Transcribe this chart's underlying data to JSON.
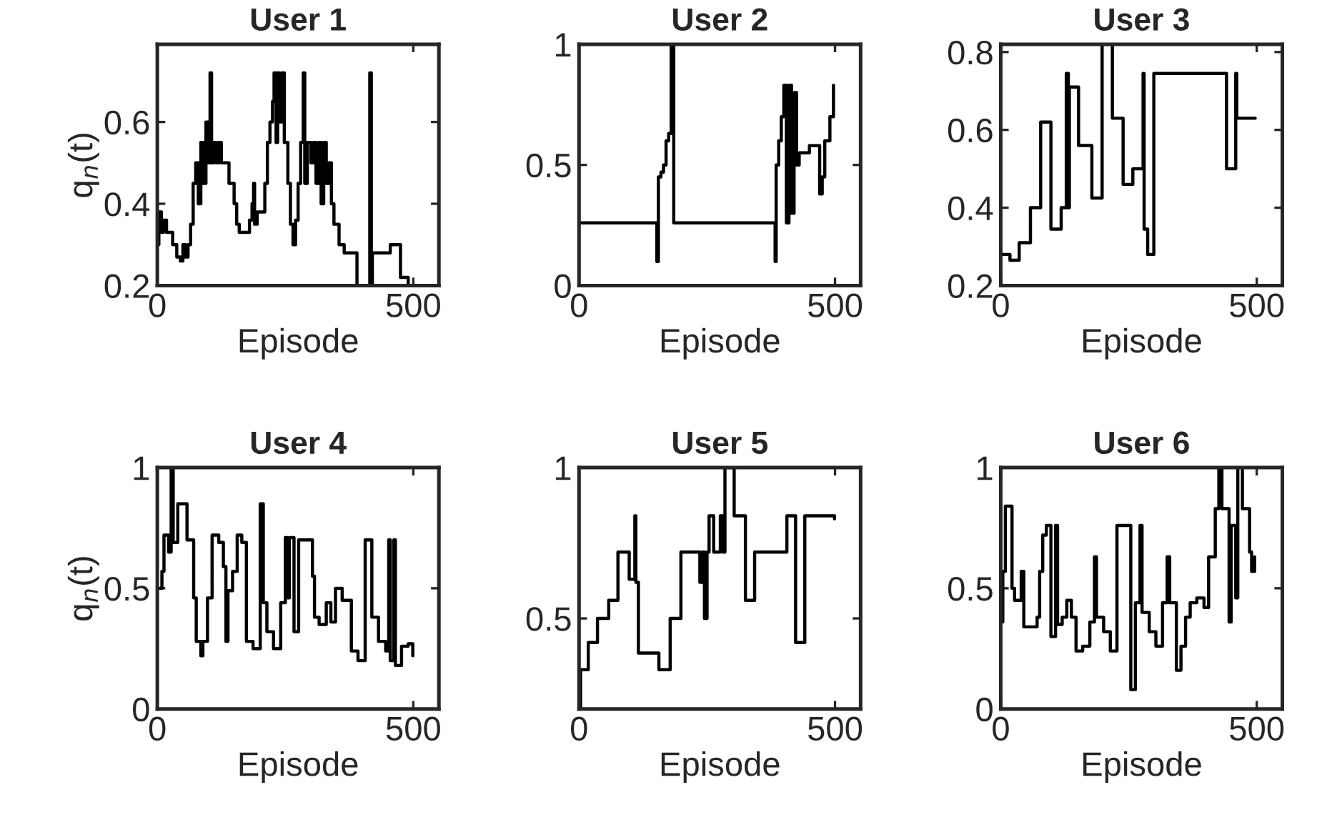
{
  "chart_data": [
    {
      "type": "step",
      "title": "User 1",
      "xlabel": "Episode",
      "ylabel": "q$_{n}$(t)",
      "xlim": [
        0,
        550
      ],
      "xticks": [
        0,
        500
      ],
      "ylim": [
        0.2,
        0.79
      ],
      "yticks": [
        0.2,
        0.4,
        0.6
      ],
      "series": [
        {
          "color": "#000000",
          "x": [
            0,
            3,
            8,
            12,
            18,
            25,
            30,
            38,
            45,
            50,
            55,
            60,
            65,
            70,
            75,
            80,
            85,
            90,
            95,
            100,
            103,
            106,
            110,
            115,
            120,
            125,
            135,
            140,
            150,
            155,
            160,
            175,
            180,
            185,
            188,
            190,
            195,
            205,
            210,
            215,
            220,
            225,
            228,
            232,
            235,
            238,
            243,
            248,
            255,
            260,
            265,
            270,
            275,
            280,
            285,
            288,
            293,
            300,
            305,
            310,
            315,
            320,
            325,
            330,
            335,
            340,
            345,
            355,
            365,
            380,
            390,
            410,
            415,
            418,
            420,
            450,
            455,
            470,
            475,
            490
          ],
          "values": [
            0.3,
            0.38,
            0.33,
            0.36,
            0.33,
            0.33,
            0.3,
            0.27,
            0.26,
            0.3,
            0.27,
            0.3,
            0.35,
            0.45,
            0.5,
            0.4,
            0.55,
            0.45,
            0.6,
            0.5,
            0.72,
            0.5,
            0.55,
            0.5,
            0.55,
            0.5,
            0.5,
            0.45,
            0.4,
            0.35,
            0.33,
            0.33,
            0.36,
            0.4,
            0.45,
            0.35,
            0.38,
            0.38,
            0.45,
            0.55,
            0.6,
            0.65,
            0.72,
            0.55,
            0.72,
            0.6,
            0.72,
            0.55,
            0.45,
            0.35,
            0.3,
            0.36,
            0.45,
            0.55,
            0.72,
            0.45,
            0.55,
            0.5,
            0.55,
            0.45,
            0.55,
            0.4,
            0.55,
            0.45,
            0.5,
            0.4,
            0.35,
            0.3,
            0.28,
            0.28,
            0.2,
            0.2,
            0.72,
            0.2,
            0.28,
            0.28,
            0.3,
            0.3,
            0.22,
            0.2
          ]
        }
      ]
    },
    {
      "type": "step",
      "title": "User 2",
      "xlabel": "Episode",
      "xlim": [
        0,
        550
      ],
      "xticks": [
        0,
        500
      ],
      "ylim": [
        0,
        1
      ],
      "yticks": [
        0,
        0.5,
        1
      ],
      "series": [
        {
          "color": "#000000",
          "x": [
            0,
            150,
            152,
            155,
            160,
            165,
            170,
            175,
            180,
            185,
            380,
            383,
            385,
            390,
            395,
            400,
            405,
            410,
            415,
            420,
            425,
            430,
            440,
            450,
            460,
            470,
            475,
            480,
            490,
            497
          ],
          "values": [
            0.26,
            0.26,
            0.1,
            0.45,
            0.47,
            0.5,
            0.6,
            0.63,
            1.0,
            0.26,
            0.26,
            0.1,
            0.5,
            0.6,
            0.7,
            0.83,
            0.26,
            0.83,
            0.3,
            0.8,
            0.5,
            0.55,
            0.55,
            0.58,
            0.58,
            0.38,
            0.45,
            0.6,
            0.7,
            0.83
          ]
        }
      ]
    },
    {
      "type": "step",
      "title": "User 3",
      "xlabel": "Episode",
      "xlim": [
        0,
        550
      ],
      "xticks": [
        0,
        500
      ],
      "ylim": [
        0.2,
        0.82
      ],
      "yticks": [
        0.2,
        0.4,
        0.6,
        0.8
      ],
      "series": [
        {
          "color": "#000000",
          "x": [
            0,
            18,
            36,
            58,
            78,
            98,
            118,
            128,
            132,
            134,
            152,
            178,
            198,
            218,
            239,
            258,
            278,
            280,
            287,
            299,
            441,
            459,
            461,
            497
          ],
          "values": [
            0.28,
            0.265,
            0.31,
            0.4,
            0.62,
            0.345,
            0.4,
            0.745,
            0.4,
            0.71,
            0.56,
            0.425,
            0.82,
            0.63,
            0.46,
            0.5,
            0.745,
            0.345,
            0.28,
            0.745,
            0.5,
            0.745,
            0.63,
            0.63
          ]
        }
      ]
    },
    {
      "type": "step",
      "title": "User 4",
      "xlabel": "Episode",
      "ylabel": "q$_{n}$(t)",
      "xlim": [
        0,
        550
      ],
      "xticks": [
        0,
        500
      ],
      "ylim": [
        0,
        1
      ],
      "yticks": [
        0,
        0.5,
        1
      ],
      "series": [
        {
          "color": "#000000",
          "x": [
            0,
            9,
            13,
            22,
            27,
            31,
            40,
            58,
            71,
            76,
            85,
            89,
            98,
            107,
            120,
            129,
            134,
            138,
            147,
            156,
            165,
            174,
            187,
            201,
            207,
            214,
            227,
            241,
            250,
            254,
            258,
            267,
            276,
            290,
            303,
            307,
            316,
            330,
            339,
            348,
            361,
            379,
            392,
            406,
            419,
            432,
            446,
            452,
            455,
            462,
            465,
            477,
            490,
            499
          ],
          "values": [
            0.5,
            0.57,
            0.72,
            0.65,
            1.0,
            0.69,
            0.85,
            0.7,
            0.46,
            0.28,
            0.22,
            0.28,
            0.46,
            0.72,
            0.69,
            0.59,
            0.28,
            0.49,
            0.57,
            0.72,
            0.69,
            0.28,
            0.25,
            0.85,
            0.44,
            0.32,
            0.25,
            0.44,
            0.71,
            0.46,
            0.71,
            0.32,
            0.7,
            0.7,
            0.55,
            0.38,
            0.35,
            0.44,
            0.36,
            0.5,
            0.45,
            0.24,
            0.2,
            0.7,
            0.38,
            0.28,
            0.24,
            0.7,
            0.2,
            0.7,
            0.18,
            0.26,
            0.27,
            0.22
          ]
        }
      ]
    },
    {
      "type": "step",
      "title": "User 5",
      "xlabel": "Episode",
      "xlim": [
        0,
        550
      ],
      "xticks": [
        0,
        500
      ],
      "ylim": [
        0.2,
        1
      ],
      "yticks": [
        0.5,
        1
      ],
      "series": [
        {
          "color": "#000000",
          "x": [
            0,
            3,
            18,
            36,
            58,
            76,
            98,
            109,
            111,
            116,
            156,
            178,
            199,
            236,
            241,
            245,
            250,
            254,
            263,
            276,
            281,
            285,
            303,
            325,
            343,
            406,
            423,
            441,
            499
          ],
          "values": [
            0.2,
            0.33,
            0.42,
            0.5,
            0.56,
            0.72,
            0.63,
            0.84,
            0.62,
            0.385,
            0.33,
            0.5,
            0.72,
            0.62,
            0.72,
            0.5,
            0.72,
            0.84,
            0.72,
            0.84,
            0.72,
            1.0,
            0.84,
            0.56,
            0.72,
            0.84,
            0.42,
            0.84,
            0.83
          ]
        }
      ]
    },
    {
      "type": "step",
      "title": "User 6",
      "xlabel": "Episode",
      "xlim": [
        0,
        550
      ],
      "xticks": [
        0,
        500
      ],
      "ylim": [
        0,
        1
      ],
      "yticks": [
        0,
        0.5,
        1
      ],
      "series": [
        {
          "color": "#000000",
          "x": [
            0,
            4,
            9,
            22,
            27,
            40,
            45,
            71,
            76,
            82,
            89,
            98,
            107,
            111,
            120,
            129,
            138,
            147,
            160,
            174,
            183,
            187,
            201,
            214,
            227,
            250,
            254,
            263,
            272,
            276,
            290,
            303,
            316,
            325,
            330,
            343,
            352,
            361,
            370,
            383,
            397,
            406,
            419,
            426,
            432,
            446,
            450,
            459,
            463,
            472,
            481,
            486,
            490,
            496
          ],
          "values": [
            0.36,
            0.57,
            0.84,
            0.5,
            0.45,
            0.57,
            0.34,
            0.38,
            0.57,
            0.72,
            0.76,
            0.3,
            0.76,
            0.35,
            0.38,
            0.45,
            0.38,
            0.24,
            0.26,
            0.36,
            0.63,
            0.38,
            0.32,
            0.24,
            0.76,
            0.76,
            0.08,
            0.44,
            0.76,
            0.4,
            0.32,
            0.26,
            0.44,
            0.63,
            0.44,
            0.16,
            0.26,
            0.38,
            0.44,
            0.46,
            0.42,
            0.63,
            0.83,
            1.0,
            0.83,
            0.36,
            0.76,
            0.46,
            1.0,
            0.83,
            0.83,
            0.65,
            0.57,
            0.63
          ]
        }
      ]
    }
  ]
}
